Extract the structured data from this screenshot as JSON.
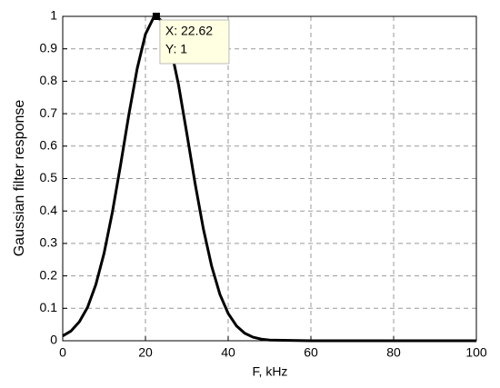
{
  "chart_data": {
    "type": "line",
    "ylabel": "Gaussian filter response",
    "xlabel": "F, kHz",
    "x": [
      0,
      2,
      4,
      6,
      8,
      10,
      12,
      14,
      16,
      18,
      20,
      22,
      22.62,
      24,
      26,
      28,
      30,
      32,
      34,
      36,
      38,
      40,
      42,
      44,
      46,
      48,
      50,
      60,
      70,
      80,
      90,
      100
    ],
    "series": [
      {
        "color": "#000000",
        "values": [
          0.015,
          0.03,
          0.058,
          0.103,
          0.173,
          0.27,
          0.396,
          0.543,
          0.698,
          0.839,
          0.945,
          0.997,
          1,
          0.985,
          0.91,
          0.789,
          0.639,
          0.485,
          0.345,
          0.23,
          0.143,
          0.084,
          0.046,
          0.023,
          0.011,
          0.005,
          0.002,
          0,
          0,
          0,
          0,
          0
        ]
      }
    ],
    "xlim": [
      0,
      100
    ],
    "xticks": [
      0,
      20,
      40,
      60,
      80,
      100
    ],
    "ylim": [
      0,
      1
    ],
    "yticks": [
      0,
      0.1,
      0.2,
      0.3,
      0.4,
      0.5,
      0.6,
      0.7,
      0.8,
      0.9,
      1
    ],
    "grid": true,
    "datatip": {
      "x": 22.62,
      "y": 1,
      "lines": [
        "X: 22.62",
        "Y: 1"
      ]
    }
  }
}
